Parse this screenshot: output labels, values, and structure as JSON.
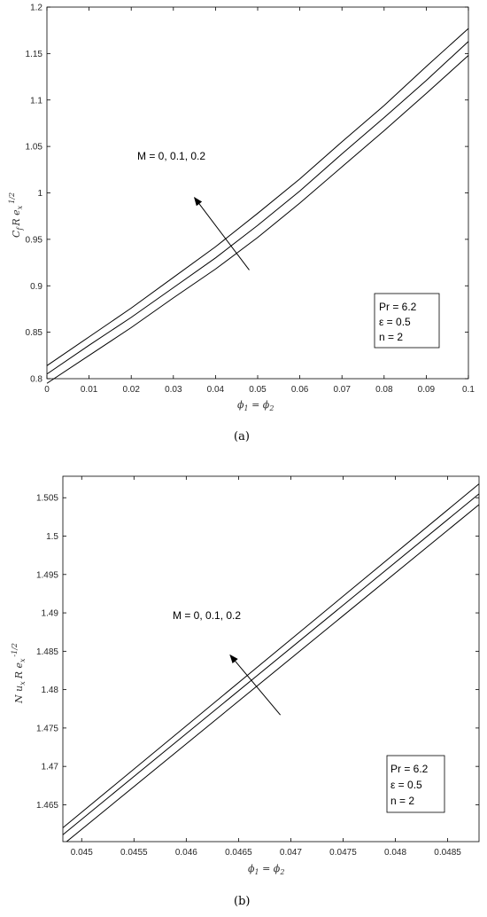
{
  "chart_data": [
    {
      "type": "line",
      "panel_label": "a",
      "x": [
        0,
        0.01,
        0.02,
        0.03,
        0.04,
        0.05,
        0.06,
        0.07,
        0.08,
        0.09,
        0.1
      ],
      "series": [
        {
          "values": [
            0.805,
            0.836,
            0.866,
            0.898,
            0.93,
            0.965,
            1.002,
            1.042,
            1.081,
            1.121,
            1.163
          ]
        },
        {
          "values": [
            0.814,
            0.845,
            0.876,
            0.909,
            0.942,
            0.978,
            1.015,
            1.055,
            1.094,
            1.136,
            1.177
          ]
        },
        {
          "values": [
            0.795,
            0.825,
            0.855,
            0.887,
            0.918,
            0.952,
            0.989,
            1.028,
            1.067,
            1.107,
            1.148
          ]
        }
      ],
      "xlim": [
        0,
        0.1
      ],
      "ylim": [
        0.8,
        1.2
      ],
      "xticks": [
        "0",
        "0.01",
        "0.02",
        "0.03",
        "0.04",
        "0.05",
        "0.06",
        "0.07",
        "0.08",
        "0.09",
        "0.1"
      ],
      "yticks": [
        "0.8",
        "0.85",
        "0.9",
        "0.95",
        "1",
        "1.05",
        "1.1",
        "1.15",
        "1.2"
      ],
      "ytick_values": [
        0.8,
        0.85,
        0.9,
        0.95,
        1.0,
        1.05,
        1.1,
        1.15,
        1.2
      ],
      "xlabel": "ϕ1 = ϕ2",
      "ylabel": "Cf Re x 1/2",
      "annotation": "M = 0, 0.1, 0.2",
      "arrow": {
        "from": [
          0.048,
          0.917
        ],
        "to": [
          0.035,
          0.995
        ]
      },
      "legend": [
        "Pr = 6.2",
        "ε = 0.5",
        "n = 2"
      ],
      "legend_position": "bottom-right",
      "grid": false
    },
    {
      "type": "line",
      "panel_label": "b",
      "x": [
        0.04482,
        0.0488
      ],
      "series": [
        {
          "values": [
            1.4611,
            1.5055
          ]
        },
        {
          "values": [
            1.462,
            1.5068
          ]
        },
        {
          "values": [
            1.4598,
            1.5041
          ]
        }
      ],
      "xlim": [
        0.04482,
        0.0488
      ],
      "ylim": [
        1.4602,
        1.5078
      ],
      "xticks": [
        "0.045",
        "0.0455",
        "0.046",
        "0.0465",
        "0.047",
        "0.0475",
        "0.048",
        "0.0485"
      ],
      "xtick_values": [
        0.045,
        0.0455,
        0.046,
        0.0465,
        0.047,
        0.0475,
        0.048,
        0.0485
      ],
      "yticks": [
        "1.465",
        "1.47",
        "1.475",
        "1.48",
        "1.485",
        "1.49",
        "1.495",
        "1.5",
        "1.505"
      ],
      "ytick_values": [
        1.465,
        1.47,
        1.475,
        1.48,
        1.485,
        1.49,
        1.495,
        1.5,
        1.505
      ],
      "xlabel": "ϕ1 = ϕ2",
      "ylabel": "Nu x Re x -1/2",
      "annotation": "M = 0, 0.1, 0.2",
      "arrow": {
        "from": [
          0.0469,
          1.4767
        ],
        "to": [
          0.04642,
          1.4845
        ]
      },
      "legend": [
        "Pr = 6.2",
        "ε = 0.5",
        "n = 2"
      ],
      "legend_position": "bottom-right",
      "grid": false
    }
  ],
  "captions": {
    "a": "(a)",
    "b": "(b)"
  }
}
